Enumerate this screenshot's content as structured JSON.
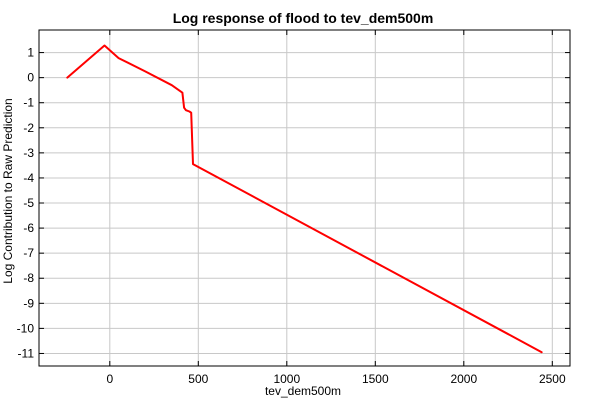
{
  "chart_data": {
    "type": "line",
    "title": "Log response of flood to tev_dem500m",
    "xlabel": "tev_dem500m",
    "ylabel": "Log Contribution to Raw Prediction",
    "xlim": [
      -400,
      2600
    ],
    "ylim": [
      -11.5,
      1.9
    ],
    "x_ticks": [
      0,
      500,
      1000,
      1500,
      2000,
      2500
    ],
    "y_ticks": [
      1,
      0,
      -1,
      -2,
      -3,
      -4,
      -5,
      -6,
      -7,
      -8,
      -9,
      -10,
      -11
    ],
    "grid": true,
    "line_color": "#ff0000",
    "series": [
      {
        "x": [
          -240,
          -30,
          50,
          200,
          350,
          410,
          420,
          430,
          450,
          460,
          470,
          2440
        ],
        "y": [
          0.0,
          1.28,
          0.78,
          0.25,
          -0.3,
          -0.6,
          -1.2,
          -1.3,
          -1.35,
          -1.4,
          -3.45,
          -10.95
        ]
      }
    ]
  }
}
